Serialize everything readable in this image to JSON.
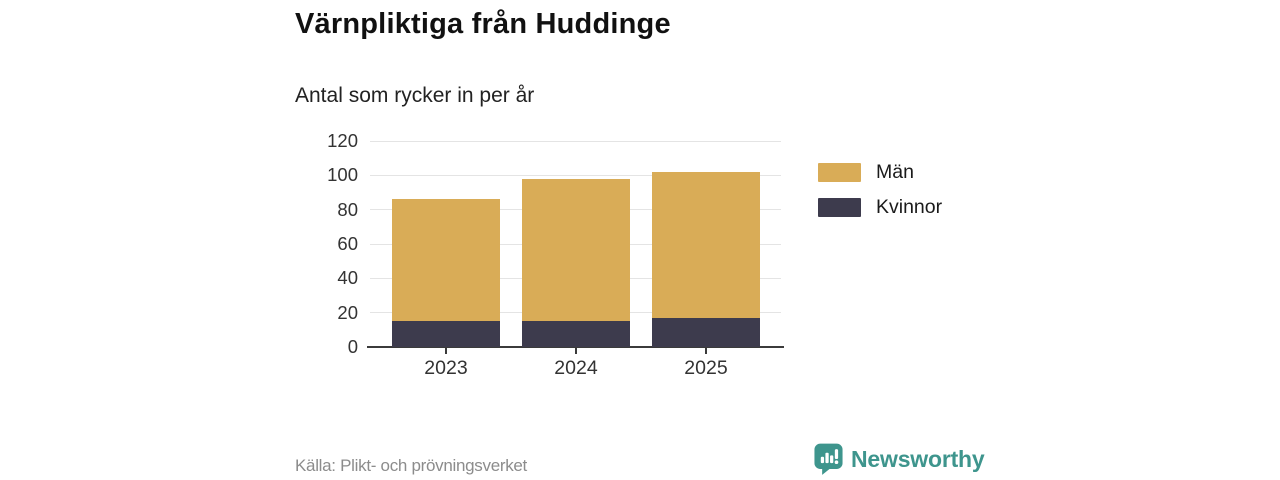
{
  "header": {
    "title": "Värnpliktiga från Huddinge",
    "subtitle": "Antal som rycker in per år"
  },
  "chart_data": {
    "type": "bar",
    "stacked": true,
    "categories": [
      "2023",
      "2024",
      "2025"
    ],
    "series": [
      {
        "name": "Kvinnor",
        "values": [
          15,
          15,
          17
        ],
        "color": "#3d3b4d"
      },
      {
        "name": "Män",
        "values": [
          71,
          83,
          85
        ],
        "color": "#d9ac57"
      }
    ],
    "totals": [
      86,
      98,
      102
    ],
    "ylim": [
      0,
      120
    ],
    "yticks": [
      0,
      20,
      40,
      60,
      80,
      100,
      120
    ],
    "grid": true,
    "legend_position": "right",
    "xlabel": "",
    "ylabel": ""
  },
  "legend": {
    "items": [
      {
        "label": "Män",
        "color": "#d9ac57"
      },
      {
        "label": "Kvinnor",
        "color": "#3d3b4d"
      }
    ]
  },
  "footer": {
    "source": "Källa: Plikt- och prövningsverket",
    "brand": "Newsworthy"
  },
  "colors": {
    "bar_men": "#d9ac57",
    "bar_women": "#3d3b4d",
    "gridline": "#e4e4e4",
    "axis": "#3b3b3b",
    "teal_brand": "#3e958d",
    "text_dark": "#111111",
    "text_gray": "#8c8c8c"
  }
}
